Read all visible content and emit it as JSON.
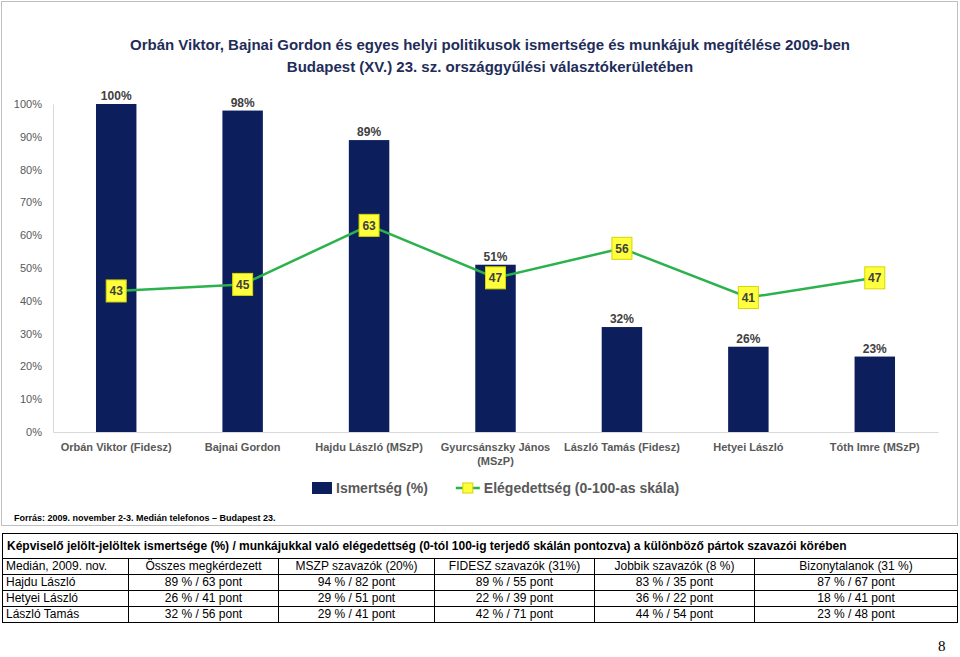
{
  "chart_data": {
    "type": "bar",
    "title": "Orbán Viktor, Bajnai Gordon és egyes helyi politikusok ismertsége és munkájuk megítélése 2009-ben",
    "subtitle": "Budapest (XV.) 23. sz. országgyűlési választókerületében",
    "annotations": [
      "Forrás: 2009. november 2-3. Medián telefonos – Budapest 23."
    ],
    "categories": [
      "Orbán Viktor (Fidesz)",
      "Bajnai Gordon",
      "Hajdu László (MSzP)",
      "Gyurcsánszky János (MSzP)",
      "László Tamás (Fidesz)",
      "Hetyei László",
      "Tóth Imre (MSzP)"
    ],
    "series": [
      {
        "name": "Ismertség (%)",
        "type": "bar",
        "color": "#0c1f5c",
        "values": [
          100,
          98,
          89,
          51,
          32,
          26,
          23
        ],
        "value_labels": [
          "100%",
          "98%",
          "89%",
          "51%",
          "32%",
          "26%",
          "23%"
        ]
      },
      {
        "name": "Elégedettség (0-100-as skála)",
        "type": "line",
        "color": "#2bb24c",
        "marker": "square",
        "values": [
          43,
          45,
          63,
          47,
          56,
          41,
          47
        ]
      }
    ],
    "ylim": [
      0,
      100
    ],
    "yticks": [
      {
        "value": 0,
        "label": "0%"
      },
      {
        "value": 10,
        "label": "10%"
      },
      {
        "value": 20,
        "label": "20%"
      },
      {
        "value": 30,
        "label": "30%"
      },
      {
        "value": 40,
        "label": "40%"
      },
      {
        "value": 50,
        "label": "50%"
      },
      {
        "value": 60,
        "label": "60%"
      },
      {
        "value": 70,
        "label": "70%"
      },
      {
        "value": 80,
        "label": "80%"
      },
      {
        "value": 90,
        "label": "90%"
      },
      {
        "value": 100,
        "label": "100%"
      }
    ],
    "grid": false,
    "legend": "bottom",
    "data_labels": true
  },
  "table": {
    "caption": "Képviselő jelölt-jelöltek ismertsége (%) / munkájukkal való elégedettség (0-tól 100-ig terjedő skálán pontozva) a különböző pártok szavazói körében",
    "header": [
      "Medián, 2009. nov.",
      "Összes megkérdezett",
      "MSZP szavazók (20%)",
      "FIDESZ szavazók (31%)",
      "Jobbik szavazók (8 %)",
      "Bizonytalanok (31 %)"
    ],
    "rows": [
      [
        "Hajdu László",
        "89 % / 63 pont",
        "94 % / 82 pont",
        "89 % / 55 pont",
        "83 % / 35 pont",
        "87 % / 67 pont"
      ],
      [
        "Hetyei László",
        "26 % / 41 pont",
        "29 % / 51 pont",
        "22 % / 39 pont",
        "36 % / 22 pont",
        "18 % / 41 pont"
      ],
      [
        "László Tamás",
        "32 % / 56 pont",
        "29 % / 41 pont",
        "42 % / 71 pont",
        "44 % / 54 pont",
        "23 % / 48 pont"
      ]
    ]
  },
  "page_number": "8"
}
